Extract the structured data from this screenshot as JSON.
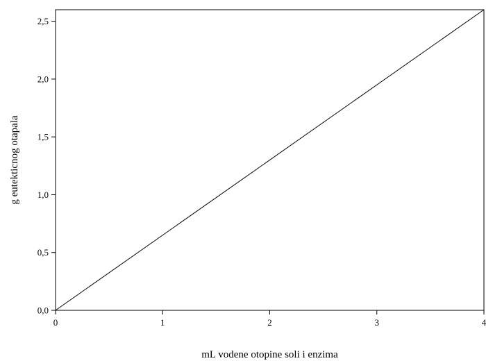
{
  "chart_data": {
    "type": "line",
    "title": "",
    "xlabel": "mL vodene otopine soli i enzima",
    "ylabel": "g eutekticnog otapala",
    "xlim": [
      0,
      4
    ],
    "ylim": [
      0,
      2.6
    ],
    "x_ticks": [
      0,
      1,
      2,
      3,
      4
    ],
    "x_tick_labels": [
      "0",
      "1",
      "2",
      "3",
      "4"
    ],
    "y_ticks": [
      0,
      0.5,
      1.0,
      1.5,
      2.0,
      2.5
    ],
    "y_tick_labels": [
      "0,0",
      "0,5",
      "1,0",
      "1,5",
      "2,0",
      "2,5"
    ],
    "grid": false,
    "legend": "none",
    "series": [
      {
        "color": "#000000",
        "x": [
          0,
          4
        ],
        "y": [
          0,
          2.6
        ]
      }
    ]
  }
}
